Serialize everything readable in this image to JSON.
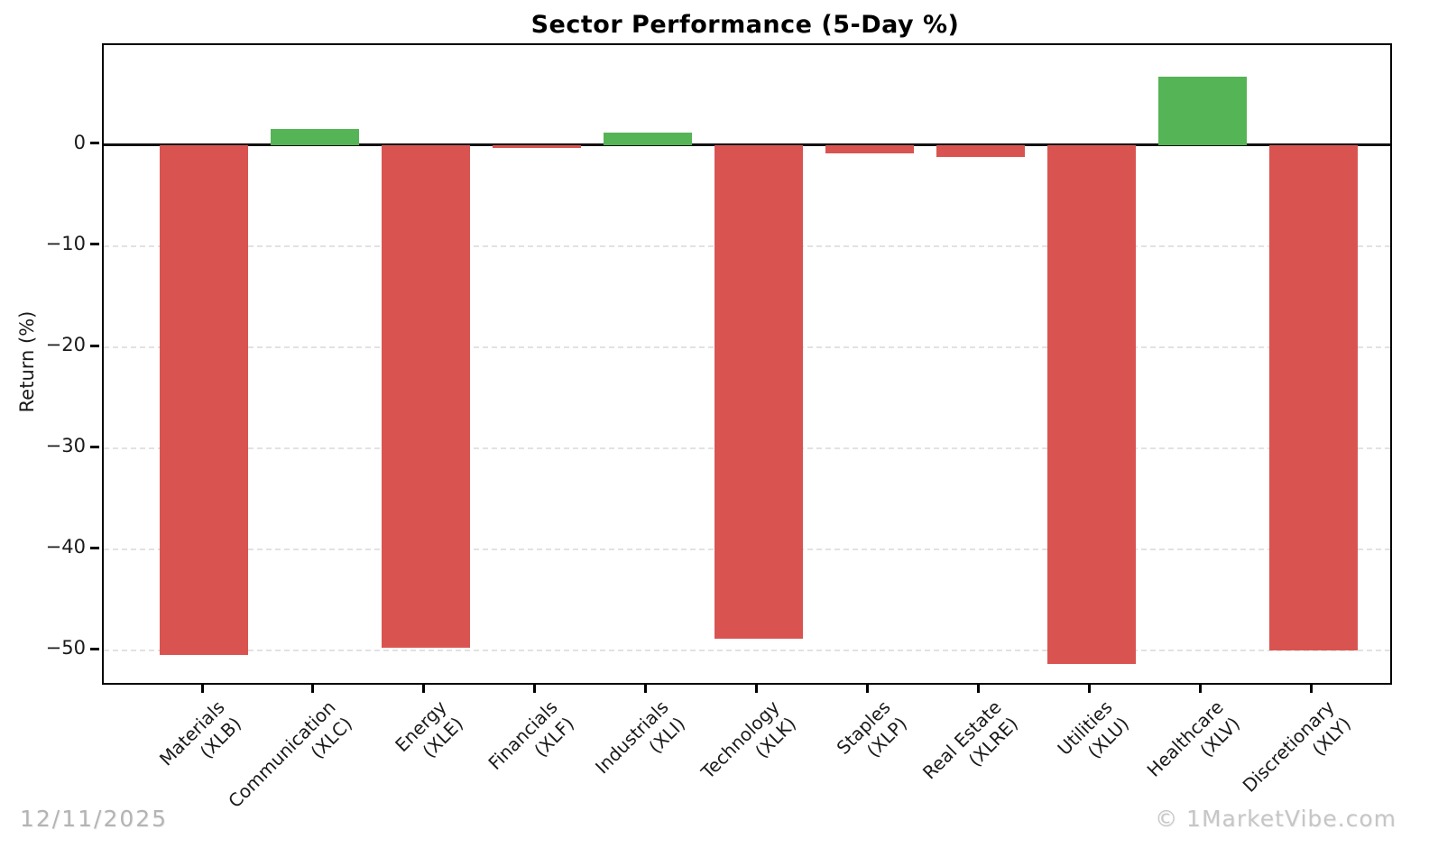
{
  "chart_data": {
    "type": "bar",
    "title": "Sector Performance (5-Day %)",
    "xlabel": "",
    "ylabel": "Return (%)",
    "ylim": [
      -53.2,
      9.9
    ],
    "yticks": [
      0,
      -10,
      -20,
      -30,
      -40,
      -50
    ],
    "grid": "horizontal dashed at negative yticks, solid black line at 0",
    "legend": "none",
    "colors": {
      "positive": "#55b456",
      "negative": "#d95450"
    },
    "series": [
      {
        "label": "Materials",
        "ticker": "XLB",
        "value": -50.4
      },
      {
        "label": "Communication",
        "ticker": "XLC",
        "value": 1.6
      },
      {
        "label": "Energy",
        "ticker": "XLE",
        "value": -49.7
      },
      {
        "label": "Financials",
        "ticker": "XLF",
        "value": -0.3
      },
      {
        "label": "Industrials",
        "ticker": "XLI",
        "value": 1.2
      },
      {
        "label": "Technology",
        "ticker": "XLK",
        "value": -48.8
      },
      {
        "label": "Staples",
        "ticker": "XLP",
        "value": -0.8
      },
      {
        "label": "Real Estate",
        "ticker": "XLRE",
        "value": -1.2
      },
      {
        "label": "Utilities",
        "ticker": "XLU",
        "value": -51.3
      },
      {
        "label": "Healthcare",
        "ticker": "XLV",
        "value": 6.8
      },
      {
        "label": "Discretionary",
        "ticker": "XLY",
        "value": -50.0
      }
    ]
  },
  "footer": {
    "date": "12/11/2025",
    "credit": "© 1MarketVibe.com"
  }
}
